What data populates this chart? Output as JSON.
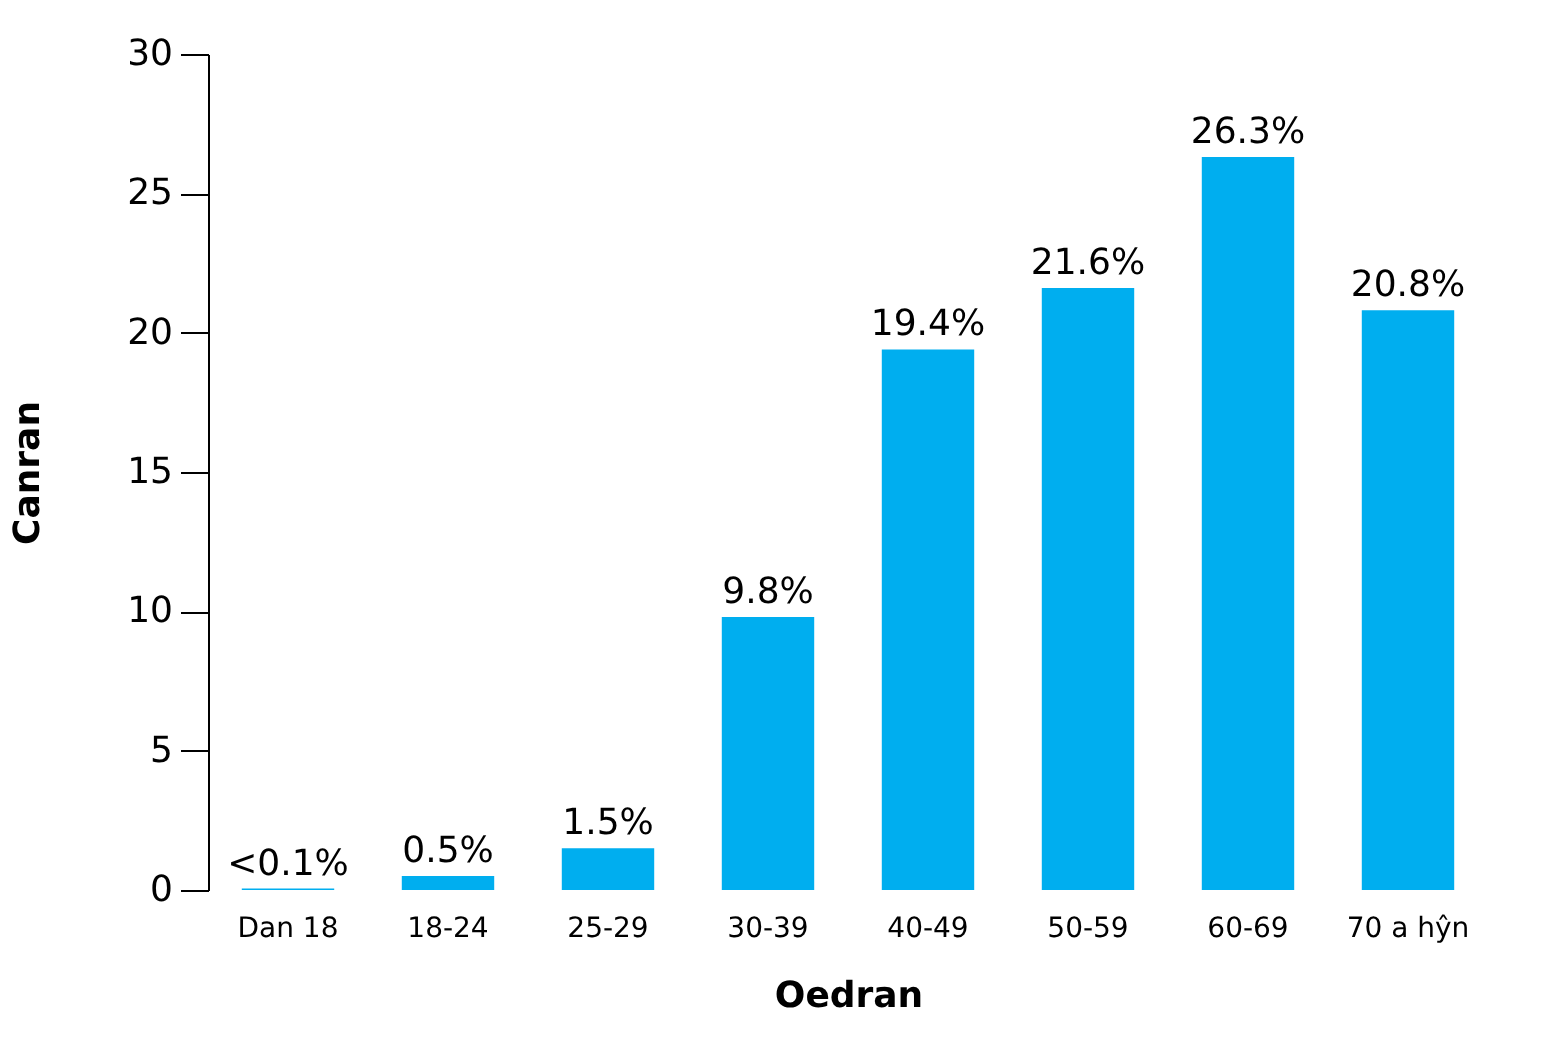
{
  "chart_data": {
    "type": "bar",
    "xlabel": "Oedran",
    "ylabel": "Canran",
    "categories": [
      "Dan 18",
      "18-24",
      "25-29",
      "30-39",
      "40-49",
      "50-59",
      "60-69",
      "70 a hŷn"
    ],
    "values": [
      0.05,
      0.5,
      1.5,
      9.8,
      19.4,
      21.6,
      26.3,
      20.8
    ],
    "value_labels": [
      "<0.1%",
      "0.5%",
      "1.5%",
      "9.8%",
      "19.4%",
      "21.6%",
      "26.3%",
      "20.8%"
    ],
    "color": "#00aeef",
    "ylim": [
      0,
      30
    ],
    "yticks": [
      0,
      5,
      10,
      15,
      20,
      25,
      30
    ],
    "grid": false
  }
}
